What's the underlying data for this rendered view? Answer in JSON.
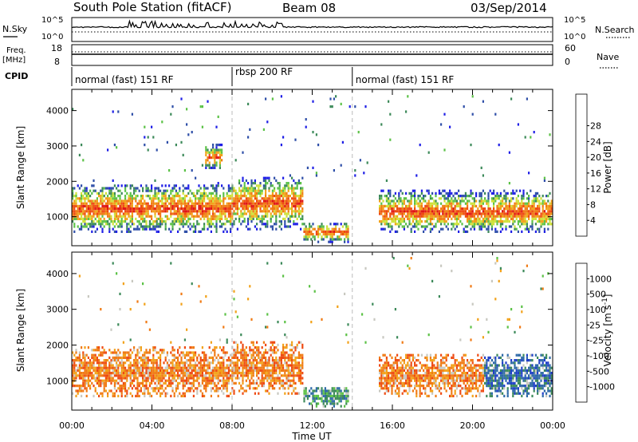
{
  "header": {
    "title": "South Pole Station (fitACF)",
    "beam": "Beam 08",
    "date": "03/Sep/2014"
  },
  "top_panels": {
    "nsky_label": "N.Sky",
    "nsky_ticks": [
      "10^5",
      "10^0"
    ],
    "nsearch_label": "N.Search",
    "nsearch_ticks": [
      "10^5",
      "10^0"
    ],
    "freq_label": "Freq.",
    "freq_unit": "[MHz]",
    "freq_ticks": [
      "18",
      "8"
    ],
    "nave_label": "Nave",
    "nave_ticks": [
      "60",
      "0"
    ],
    "cpid_label": "CPID",
    "cpid_segments": [
      {
        "label": "normal (fast) 151 RF",
        "start_hour": 0,
        "end_hour": 8
      },
      {
        "label": "rbsp 200 RF",
        "start_hour": 8,
        "end_hour": 14
      },
      {
        "label": "normal (fast) 151 RF",
        "start_hour": 14,
        "end_hour": 24
      }
    ]
  },
  "colors": {
    "power_scale": [
      "#1f1fe6",
      "#2f4fa8",
      "#3d8a5a",
      "#5cc247",
      "#cfe23a",
      "#f2a21a",
      "#f07a14",
      "#ee4a12",
      "#e01616"
    ],
    "velocity_scale": [
      "#e01616",
      "#ee4a12",
      "#f07a14",
      "#f2a21a",
      "#c8c8c0",
      "#5cc247",
      "#3d8a5a",
      "#2f6aa8",
      "#1f3fc8"
    ]
  },
  "chart_data": [
    {
      "type": "heatmap",
      "name": "power",
      "xlabel": "Time UT",
      "ylabel": "Slant Range [km]",
      "xlim": [
        0,
        24
      ],
      "ylim": [
        180,
        4600
      ],
      "x_ticks": [
        "00:00",
        "04:00",
        "08:00",
        "12:00",
        "16:00",
        "20:00",
        "00:00"
      ],
      "y_ticks": [
        1000,
        2000,
        3000,
        4000
      ],
      "colorbar": {
        "label": "Power [dB]",
        "ticks": [
          4,
          8,
          12,
          16,
          20,
          24,
          28
        ],
        "range": [
          0,
          30
        ]
      },
      "scatter_bands": [
        {
          "start_hour": 0.0,
          "end_hour": 8.0,
          "range_min_km": 500,
          "range_max_km": 1900,
          "peak_power_db": 28
        },
        {
          "start_hour": 6.6,
          "end_hour": 7.5,
          "range_min_km": 2300,
          "range_max_km": 3000,
          "peak_power_db": 24
        },
        {
          "start_hour": 8.0,
          "end_hour": 11.5,
          "range_min_km": 600,
          "range_max_km": 2100,
          "peak_power_db": 22
        },
        {
          "start_hour": 11.5,
          "end_hour": 13.8,
          "range_min_km": 250,
          "range_max_km": 800,
          "peak_power_db": 26
        },
        {
          "start_hour": 15.3,
          "end_hour": 24.0,
          "range_min_km": 500,
          "range_max_km": 1700,
          "peak_power_db": 26
        }
      ]
    },
    {
      "type": "heatmap",
      "name": "velocity",
      "xlabel": "Time UT",
      "ylabel": "Slant Range [km]",
      "xlim": [
        0,
        24
      ],
      "ylim": [
        180,
        4600
      ],
      "x_ticks": [
        "00:00",
        "04:00",
        "08:00",
        "12:00",
        "16:00",
        "20:00",
        "00:00"
      ],
      "y_ticks": [
        1000,
        2000,
        3000,
        4000
      ],
      "colorbar": {
        "label": "Velocity [m s^-1]",
        "ticks": [
          "-1000",
          "-500",
          "-100",
          "-25",
          "25",
          "100",
          "500",
          "1000"
        ],
        "range": [
          -1000,
          1000
        ]
      },
      "scatter_bands": [
        {
          "start_hour": 0.0,
          "end_hour": 8.0,
          "range_min_km": 500,
          "range_max_km": 1900,
          "dominant_velocity": -300
        },
        {
          "start_hour": 8.0,
          "end_hour": 11.5,
          "range_min_km": 600,
          "range_max_km": 2100,
          "dominant_velocity": -300
        },
        {
          "start_hour": 11.5,
          "end_hour": 13.8,
          "range_min_km": 250,
          "range_max_km": 800,
          "dominant_velocity": 200
        },
        {
          "start_hour": 15.3,
          "end_hour": 20.5,
          "range_min_km": 500,
          "range_max_km": 1700,
          "dominant_velocity": -200
        },
        {
          "start_hour": 20.5,
          "end_hour": 24.0,
          "range_min_km": 500,
          "range_max_km": 1700,
          "dominant_velocity": 600
        }
      ]
    }
  ]
}
